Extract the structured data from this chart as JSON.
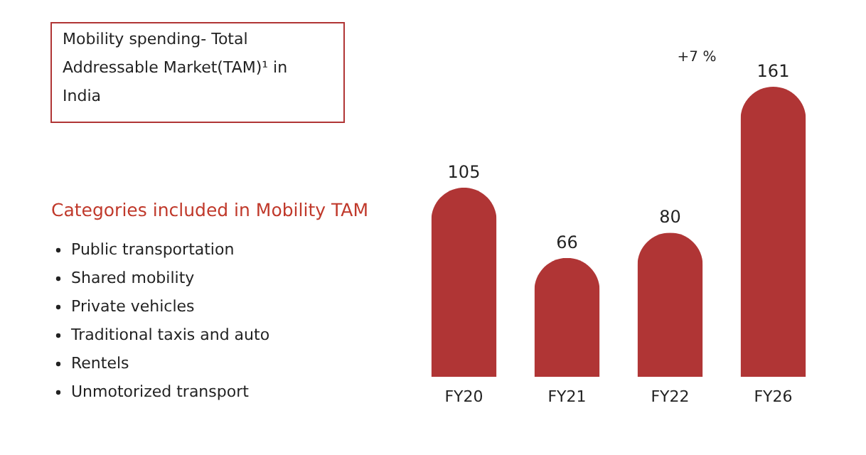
{
  "chart_data": {
    "type": "bar",
    "title": "Mobility spending- Total Addressable Market(TAM)¹ in India",
    "subtitle": "Categories included in Mobility TAM",
    "categories": [
      "FY20",
      "FY21",
      "FY22",
      "FY26"
    ],
    "values": [
      105,
      66,
      80,
      161
    ],
    "color": "#b03535",
    "data_labels": true,
    "grid": false,
    "annotations": [
      "+7 %",
      "Public transportation",
      "Shared mobility",
      "Private vehicles",
      "Traditional taxis and auto",
      "Rentels",
      "Unmotorized transport"
    ]
  }
}
